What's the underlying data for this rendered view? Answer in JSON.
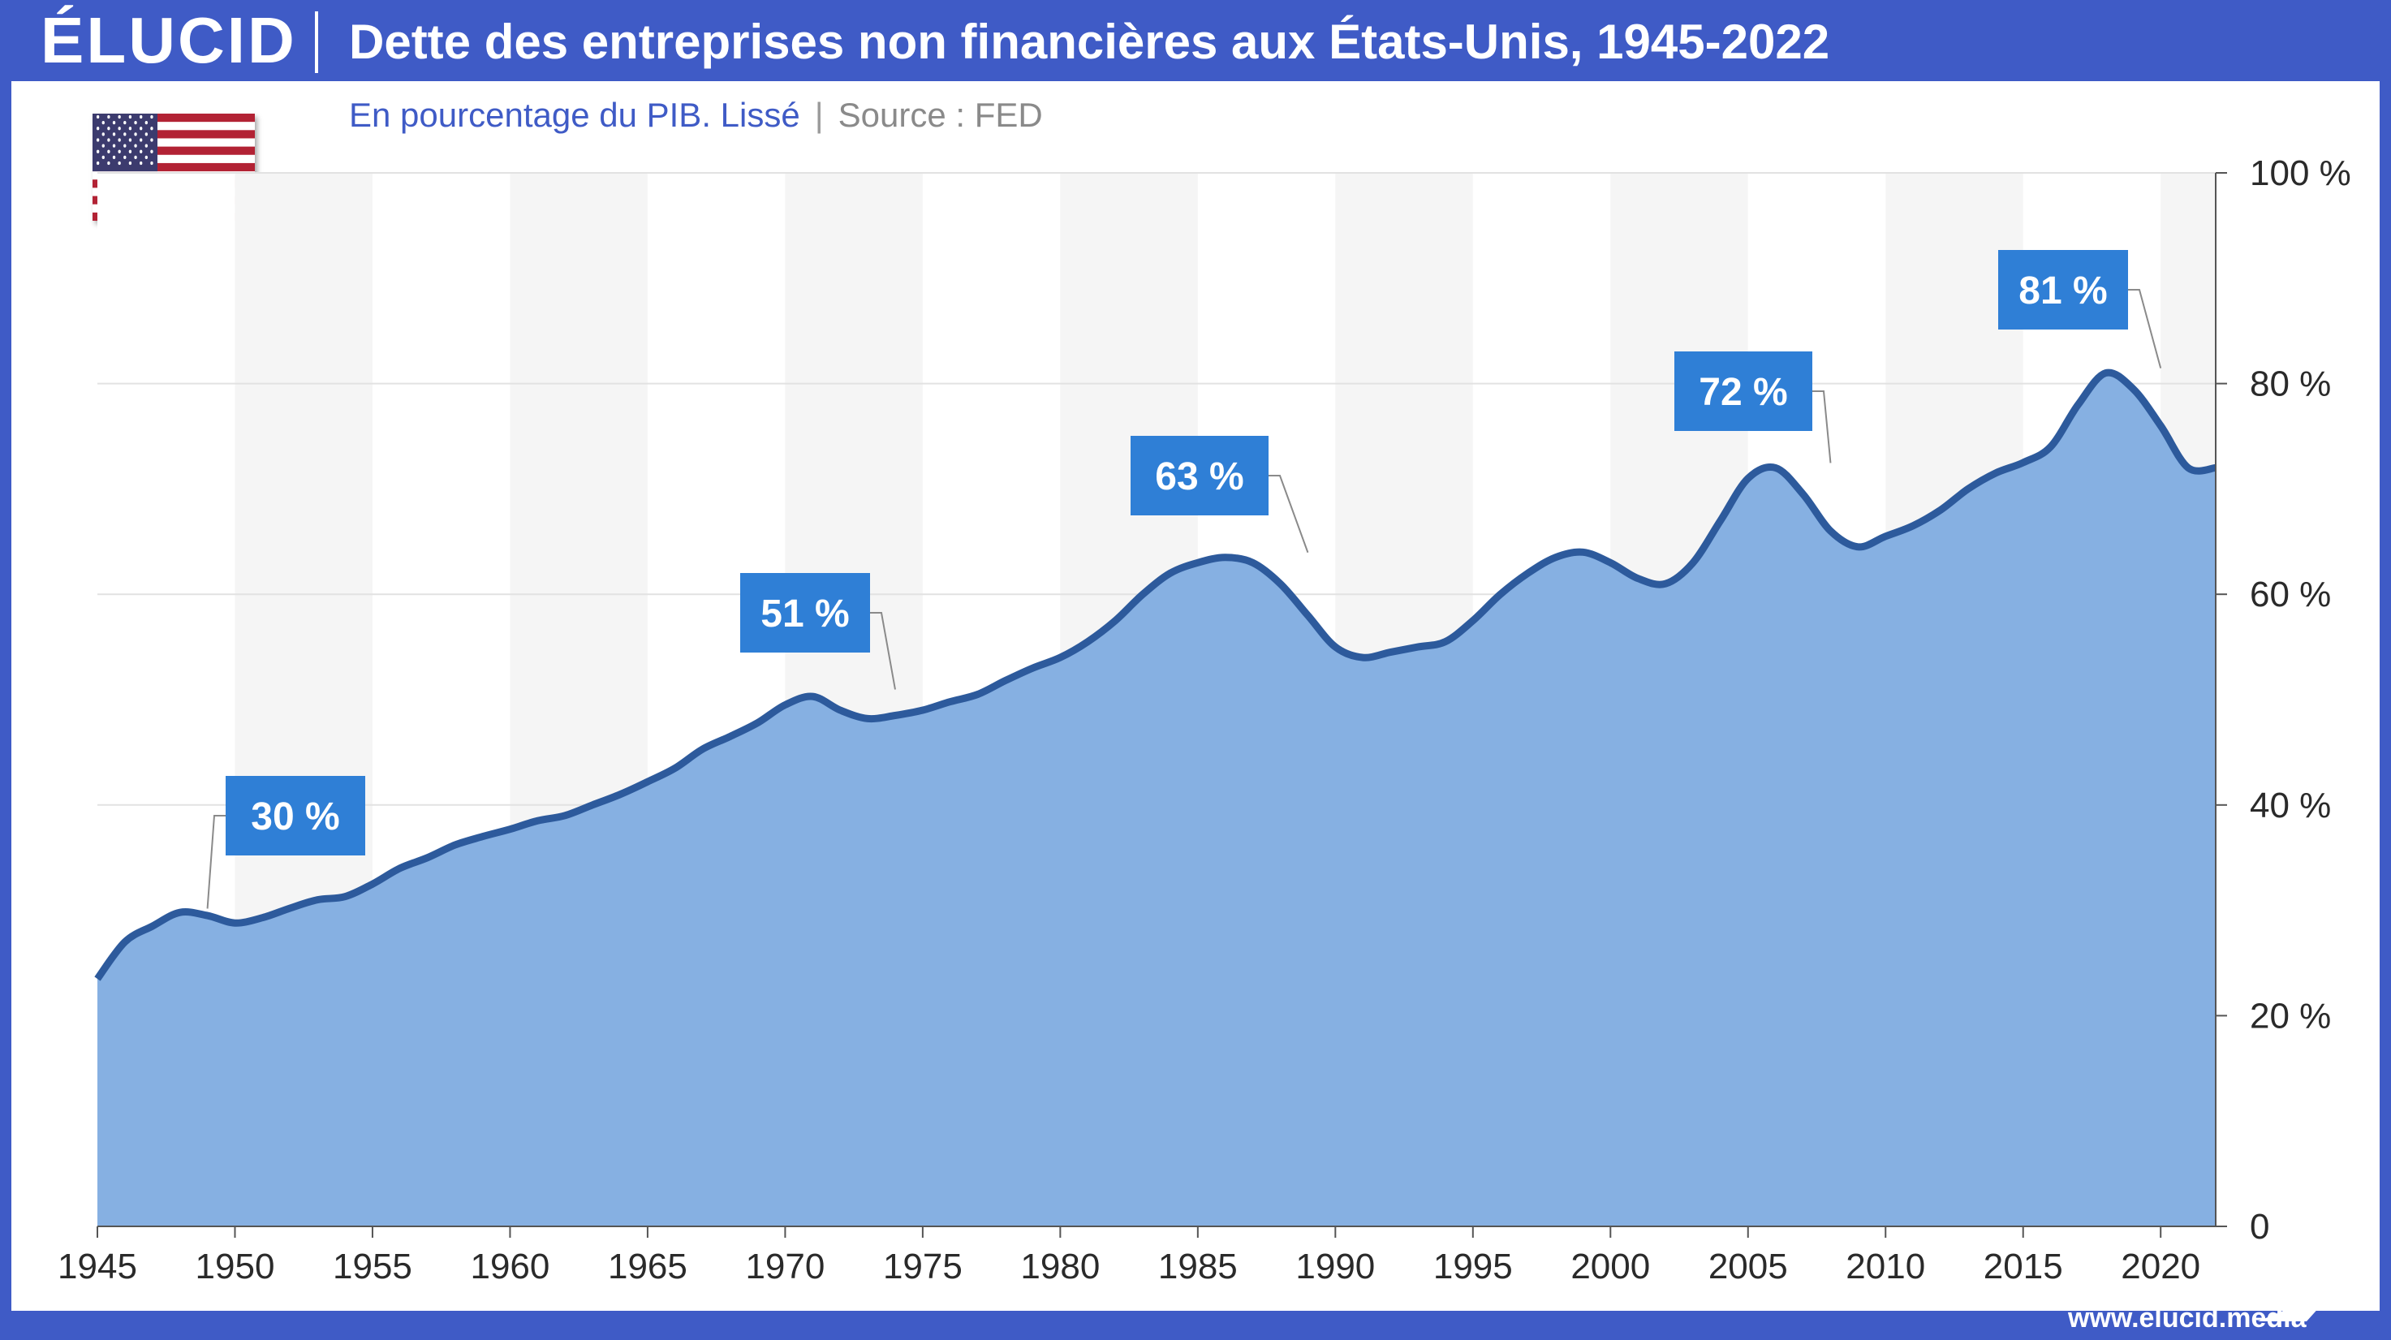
{
  "header": {
    "logo": "ÉLUCID",
    "title": "Dette des entreprises non financières aux États-Unis, 1945-2022"
  },
  "subtitle": {
    "main": "En pourcentage du PIB. Lissé",
    "separator": "|",
    "source": "Source : FED"
  },
  "footer": {
    "url": "www.elucid.media"
  },
  "icons": {
    "flag": "us-flag-icon",
    "brand_mark": "elucid-arrow-icon"
  },
  "colors": {
    "brand": "#3f5bc6",
    "area_fill": "#86b0e2",
    "line": "#2d5a9c",
    "annotation_box": "#2f7fd6",
    "band_light": "#f5f5f5"
  },
  "chart_data": {
    "type": "area",
    "title": "Dette des entreprises non financières aux États-Unis, 1945-2022",
    "subtitle": "En pourcentage du PIB. Lissé",
    "xlabel": "",
    "ylabel": "",
    "xlim": [
      1945,
      2022
    ],
    "ylim": [
      0,
      100
    ],
    "grid": true,
    "y_axis_side": "right",
    "x_ticks": [
      1945,
      1950,
      1955,
      1960,
      1965,
      1970,
      1975,
      1980,
      1985,
      1990,
      1995,
      2000,
      2005,
      2010,
      2015,
      2020
    ],
    "y_ticks": [
      {
        "value": 0,
        "label": "0"
      },
      {
        "value": 20,
        "label": "20 %"
      },
      {
        "value": 40,
        "label": "40 %"
      },
      {
        "value": 60,
        "label": "60 %"
      },
      {
        "value": 80,
        "label": "80 %"
      },
      {
        "value": 100,
        "label": "100 %"
      }
    ],
    "series": [
      {
        "x": [
          1945,
          1946,
          1947,
          1948,
          1949,
          1950,
          1951,
          1952,
          1953,
          1954,
          1955,
          1956,
          1957,
          1958,
          1959,
          1960,
          1961,
          1962,
          1963,
          1964,
          1965,
          1966,
          1967,
          1968,
          1969,
          1970,
          1971,
          1972,
          1973,
          1974,
          1975,
          1976,
          1977,
          1978,
          1979,
          1980,
          1981,
          1982,
          1983,
          1984,
          1985,
          1986,
          1987,
          1988,
          1989,
          1990,
          1991,
          1992,
          1993,
          1994,
          1995,
          1996,
          1997,
          1998,
          1999,
          2000,
          2001,
          2002,
          2003,
          2004,
          2005,
          2006,
          2007,
          2008,
          2009,
          2010,
          2011,
          2012,
          2013,
          2014,
          2015,
          2016,
          2017,
          2018,
          2019,
          2020,
          2021,
          2022
        ],
        "values": [
          23.5,
          27.0,
          28.5,
          29.8,
          29.5,
          28.8,
          29.3,
          30.2,
          31.0,
          31.3,
          32.5,
          34.0,
          35.0,
          36.2,
          37.0,
          37.7,
          38.5,
          39.0,
          40.0,
          41.0,
          42.2,
          43.5,
          45.3,
          46.5,
          47.8,
          49.5,
          50.3,
          49.0,
          48.2,
          48.5,
          49.0,
          49.8,
          50.5,
          51.8,
          53.0,
          54.0,
          55.5,
          57.5,
          60.0,
          62.0,
          63.0,
          63.5,
          63.0,
          61.0,
          58.0,
          55.0,
          54.0,
          54.5,
          55.0,
          55.5,
          57.5,
          60.0,
          62.0,
          63.5,
          64.0,
          63.0,
          61.5,
          61.0,
          63.0,
          67.0,
          71.0,
          72.0,
          69.5,
          66.0,
          64.5,
          65.5,
          66.5,
          68.0,
          70.0,
          71.5,
          72.5,
          74.0,
          78.0,
          81.0,
          79.5,
          76.0,
          72.0,
          72.0
        ]
      }
    ],
    "annotations": [
      {
        "label": "30 %",
        "x": 1949,
        "y": 29.7
      },
      {
        "label": "51 %",
        "x": 1974,
        "y": 50.5
      },
      {
        "label": "63 %",
        "x": 1989,
        "y": 63.5
      },
      {
        "label": "72 %",
        "x": 2008,
        "y": 72.0
      },
      {
        "label": "81 %",
        "x": 2020,
        "y": 81.0
      }
    ]
  }
}
